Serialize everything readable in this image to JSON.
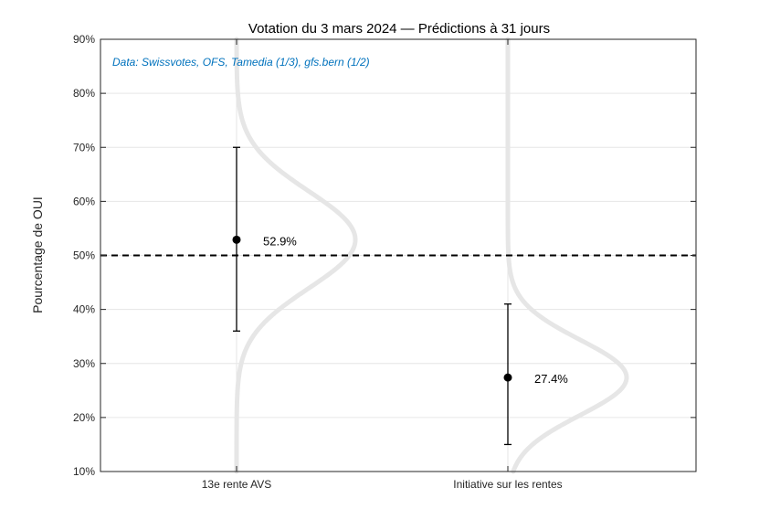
{
  "chart_data": {
    "type": "scatter",
    "title": "Votation du 3 mars 2024  —  Prédictions à 31 jours",
    "ylabel": "Pourcentage de OUI",
    "source_note": "Data: Swissvotes, OFS, Tamedia (1/3), gfs.bern (1/2)",
    "ylim": [
      10,
      90
    ],
    "yticks": [
      10,
      20,
      30,
      40,
      50,
      60,
      70,
      80,
      90
    ],
    "ytick_labels": [
      "10%",
      "20%",
      "30%",
      "40%",
      "50%",
      "60%",
      "70%",
      "80%",
      "90%"
    ],
    "categories": [
      "13e rente AVS",
      "Initiative sur les rentes"
    ],
    "points": [
      {
        "category": "13e rente AVS",
        "value": 52.9,
        "lower": 36,
        "upper": 70,
        "label": "52.9%",
        "sd": 9.0
      },
      {
        "category": "Initiative sur les rentes",
        "value": 27.4,
        "lower": 15,
        "upper": 41,
        "label": "27.4%",
        "sd": 7.0
      }
    ],
    "threshold": 50,
    "grid": true,
    "colors": {
      "point": "#000000",
      "distribution": "#e6e6e6",
      "threshold": "#000000",
      "grid": "#e6e6e6",
      "source_text": "#0072bd"
    }
  }
}
